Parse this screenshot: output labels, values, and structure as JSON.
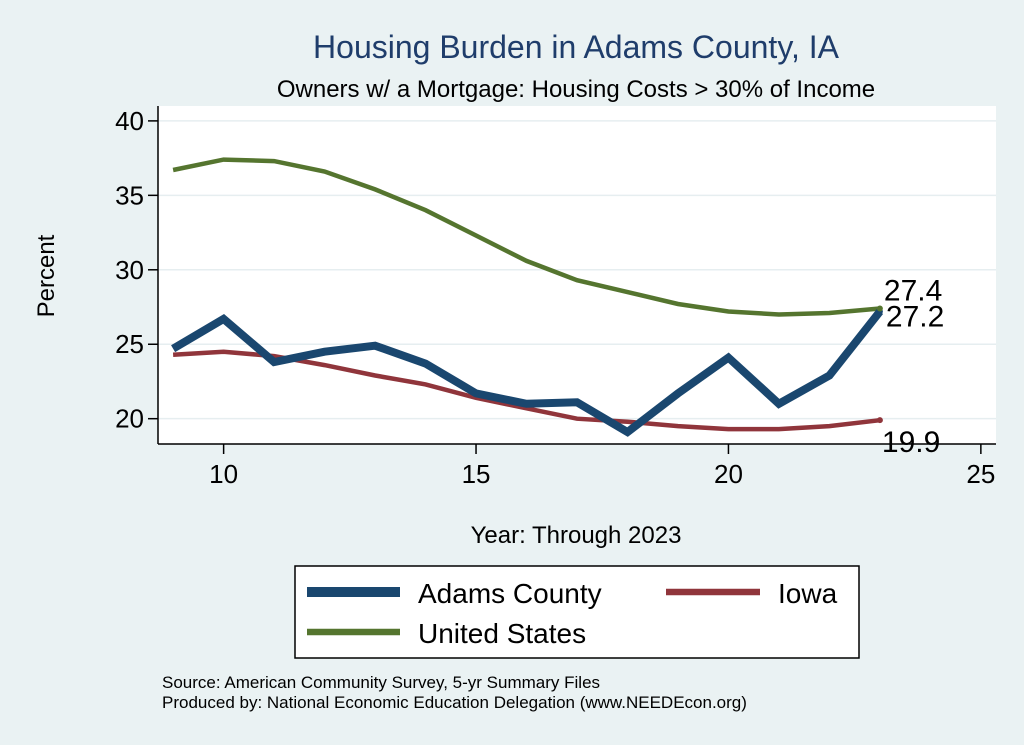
{
  "chart_data": {
    "type": "line",
    "title": "Housing Burden in Adams County, IA",
    "subtitle": "Owners w/ a Mortgage: Housing Costs > 30% of Income",
    "xlabel": "Year: Through 2023",
    "ylabel": "Percent",
    "xlim": [
      8.7,
      25.3
    ],
    "ylim": [
      18.3,
      41
    ],
    "xticks": [
      10,
      15,
      20,
      25
    ],
    "yticks": [
      20,
      25,
      30,
      35,
      40
    ],
    "grid": true,
    "legend_position": "bottom",
    "series": [
      {
        "name": "Adams County",
        "color": "#1a476f",
        "width": "thick",
        "x": [
          9,
          10,
          11,
          12,
          13,
          14,
          15,
          16,
          17,
          18,
          19,
          20,
          21,
          22,
          23
        ],
        "values": [
          24.7,
          26.7,
          23.8,
          24.5,
          24.9,
          23.7,
          21.7,
          21.0,
          21.1,
          19.1,
          21.7,
          24.1,
          21.0,
          22.9,
          27.2
        ],
        "end_label": "27.2"
      },
      {
        "name": "Iowa",
        "color": "#90353b",
        "width": "medium",
        "x": [
          9,
          10,
          11,
          12,
          13,
          14,
          15,
          16,
          17,
          18,
          19,
          20,
          21,
          22,
          23
        ],
        "values": [
          24.3,
          24.5,
          24.2,
          23.6,
          22.9,
          22.3,
          21.4,
          20.7,
          20.0,
          19.8,
          19.5,
          19.3,
          19.3,
          19.5,
          19.9
        ],
        "end_label": "19.9"
      },
      {
        "name": "United States",
        "color": "#55752f",
        "width": "medium",
        "x": [
          9,
          10,
          11,
          12,
          13,
          14,
          15,
          16,
          17,
          18,
          19,
          20,
          21,
          22,
          23
        ],
        "values": [
          36.7,
          37.4,
          37.3,
          36.6,
          35.4,
          34.0,
          32.3,
          30.6,
          29.3,
          28.5,
          27.7,
          27.2,
          27.0,
          27.1,
          27.4
        ],
        "end_label": "27.4"
      }
    ],
    "notes": [
      "Source: American Community Survey, 5-yr Summary Files",
      "Produced by: National Economic Education Delegation (www.NEEDEcon.org)"
    ]
  }
}
